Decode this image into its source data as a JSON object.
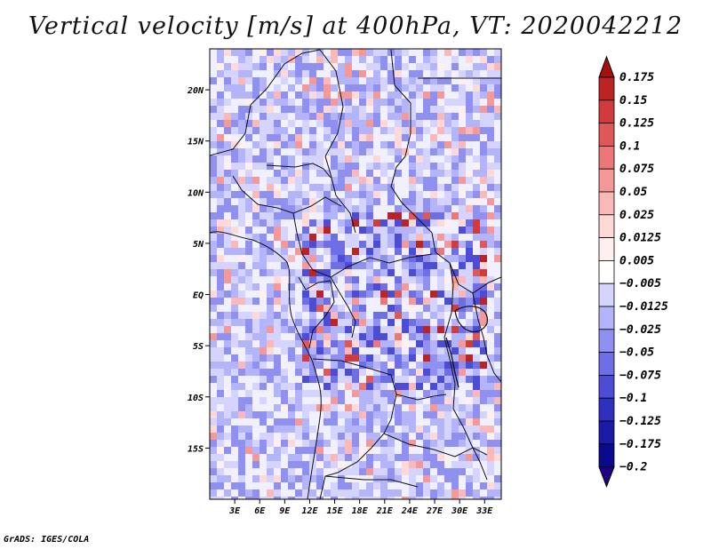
{
  "title": "Vertical velocity [m/s] at 400hPa, VT: 2020042212",
  "footer": "GrADS: IGES/COLA",
  "colors": {
    "negative": [
      "#f0f0ff",
      "#d4d4ff",
      "#b4b4fb",
      "#9090f0",
      "#6e6ee6",
      "#4c4cd6",
      "#3030c0",
      "#1a1aa6",
      "#0a0a8c",
      "#1e0080"
    ],
    "positive": [
      "#fff0f0",
      "#ffd8d8",
      "#fbb8b8",
      "#f49898",
      "#ea7878",
      "#de5858",
      "#d03c3c",
      "#bc2424",
      "#a41010"
    ]
  },
  "chart_data": {
    "type": "heatmap",
    "title": "Vertical velocity [m/s] at 400hPa, VT: 2020042212",
    "variable": "Vertical velocity",
    "units": "m/s",
    "level": "400hPa",
    "valid_time": "2020042212",
    "lon_range": [
      0,
      35
    ],
    "lat_range": [
      -20,
      24
    ],
    "x_ticks": [
      "3E",
      "6E",
      "9E",
      "12E",
      "15E",
      "18E",
      "21E",
      "24E",
      "27E",
      "30E",
      "33E"
    ],
    "x_tick_values": [
      3,
      6,
      9,
      12,
      15,
      18,
      21,
      24,
      27,
      30,
      33
    ],
    "y_ticks": [
      "20N",
      "15N",
      "10N",
      "5N",
      "EQ",
      "5S",
      "10S",
      "15S"
    ],
    "y_tick_values": [
      20,
      15,
      10,
      5,
      0,
      -5,
      -10,
      -15
    ],
    "colorbar_labels": [
      "0.175",
      "0.15",
      "0.125",
      "0.1",
      "0.075",
      "0.05",
      "0.025",
      "0.0125",
      "0.005",
      "−0.005",
      "−0.0125",
      "−0.025",
      "−0.05",
      "−0.075",
      "−0.1",
      "−0.125",
      "−0.175",
      "−0.2"
    ],
    "colorbar_values": [
      0.175,
      0.15,
      0.125,
      0.1,
      0.075,
      0.05,
      0.025,
      0.0125,
      0.005,
      -0.005,
      -0.0125,
      -0.025,
      -0.05,
      -0.075,
      -0.1,
      -0.125,
      -0.175,
      -0.2
    ],
    "colorbar_extend": "both",
    "grid": false
  }
}
